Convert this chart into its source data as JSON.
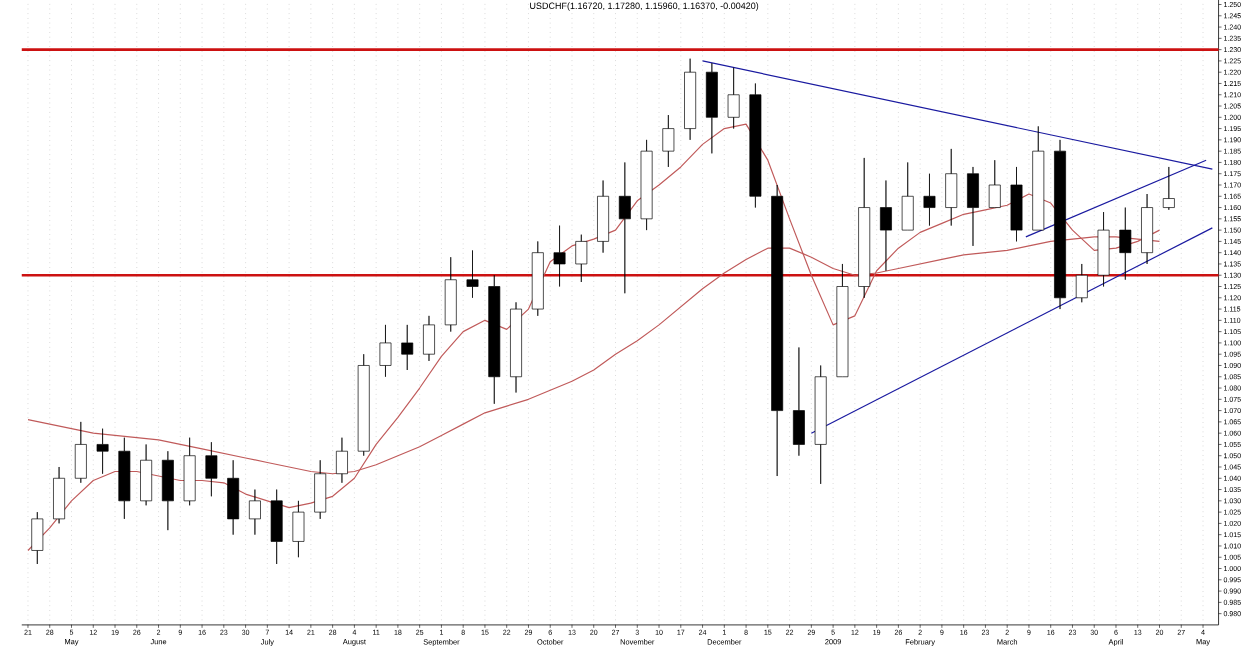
{
  "chart_data": {
    "type": "candlestick",
    "title": "USDCHF(1.16720, 1.17280, 1.15960, 1.16370, -0.00420)",
    "xlim": [
      "2008-04-19",
      "2009-05-09"
    ],
    "ylim": [
      0.975,
      1.252
    ],
    "grid": "x",
    "xticks": [
      {
        "value": "2008-04-21",
        "label": "21"
      },
      {
        "value": "2008-04-28",
        "label": "28"
      },
      {
        "value": "2008-05-05",
        "label": "5"
      },
      {
        "value": "2008-05-12",
        "label": "12"
      },
      {
        "value": "2008-05-19",
        "label": "19"
      },
      {
        "value": "2008-05-26",
        "label": "26"
      },
      {
        "value": "2008-06-02",
        "label": "2"
      },
      {
        "value": "2008-06-09",
        "label": "9"
      },
      {
        "value": "2008-06-16",
        "label": "16"
      },
      {
        "value": "2008-06-23",
        "label": "23"
      },
      {
        "value": "2008-06-30",
        "label": "30"
      },
      {
        "value": "2008-07-07",
        "label": "7"
      },
      {
        "value": "2008-07-14",
        "label": "14"
      },
      {
        "value": "2008-07-21",
        "label": "21"
      },
      {
        "value": "2008-07-28",
        "label": "28"
      },
      {
        "value": "2008-08-04",
        "label": "4"
      },
      {
        "value": "2008-08-11",
        "label": "11"
      },
      {
        "value": "2008-08-18",
        "label": "18"
      },
      {
        "value": "2008-08-25",
        "label": "25"
      },
      {
        "value": "2008-09-01",
        "label": "1"
      },
      {
        "value": "2008-09-08",
        "label": "8"
      },
      {
        "value": "2008-09-15",
        "label": "15"
      },
      {
        "value": "2008-09-22",
        "label": "22"
      },
      {
        "value": "2008-09-29",
        "label": "29"
      },
      {
        "value": "2008-10-06",
        "label": "6"
      },
      {
        "value": "2008-10-13",
        "label": "13"
      },
      {
        "value": "2008-10-20",
        "label": "20"
      },
      {
        "value": "2008-10-27",
        "label": "27"
      },
      {
        "value": "2008-11-03",
        "label": "3"
      },
      {
        "value": "2008-11-10",
        "label": "10"
      },
      {
        "value": "2008-11-17",
        "label": "17"
      },
      {
        "value": "2008-11-24",
        "label": "24"
      },
      {
        "value": "2008-12-01",
        "label": "1"
      },
      {
        "value": "2008-12-08",
        "label": "8"
      },
      {
        "value": "2008-12-15",
        "label": "15"
      },
      {
        "value": "2008-12-22",
        "label": "22"
      },
      {
        "value": "2008-12-29",
        "label": "29"
      },
      {
        "value": "2009-01-05",
        "label": "5"
      },
      {
        "value": "2009-01-12",
        "label": "12"
      },
      {
        "value": "2009-01-19",
        "label": "19"
      },
      {
        "value": "2009-01-26",
        "label": "26"
      },
      {
        "value": "2009-02-02",
        "label": "2"
      },
      {
        "value": "2009-02-09",
        "label": "9"
      },
      {
        "value": "2009-02-16",
        "label": "16"
      },
      {
        "value": "2009-02-23",
        "label": "23"
      },
      {
        "value": "2009-03-02",
        "label": "2"
      },
      {
        "value": "2009-03-09",
        "label": "9"
      },
      {
        "value": "2009-03-16",
        "label": "16"
      },
      {
        "value": "2009-03-23",
        "label": "23"
      },
      {
        "value": "2009-03-30",
        "label": "30"
      },
      {
        "value": "2009-04-06",
        "label": "6"
      },
      {
        "value": "2009-04-13",
        "label": "13"
      },
      {
        "value": "2009-04-20",
        "label": "20"
      },
      {
        "value": "2009-04-27",
        "label": "27"
      },
      {
        "value": "2009-05-04",
        "label": "4"
      }
    ],
    "yticks": [
      {
        "value": 0.98,
        "label": "0.980"
      },
      {
        "value": 0.985,
        "label": "0.985"
      },
      {
        "value": 0.99,
        "label": "0.990"
      },
      {
        "value": 0.995,
        "label": "0.995"
      },
      {
        "value": 1.0,
        "label": "1.000"
      },
      {
        "value": 1.005,
        "label": "1.005"
      },
      {
        "value": 1.01,
        "label": "1.010"
      },
      {
        "value": 1.015,
        "label": "1.015"
      },
      {
        "value": 1.02,
        "label": "1.020"
      },
      {
        "value": 1.025,
        "label": "1.025"
      },
      {
        "value": 1.03,
        "label": "1.030"
      },
      {
        "value": 1.035,
        "label": "1.035"
      },
      {
        "value": 1.04,
        "label": "1.040"
      },
      {
        "value": 1.045,
        "label": "1.045"
      },
      {
        "value": 1.05,
        "label": "1.050"
      },
      {
        "value": 1.055,
        "label": "1.055"
      },
      {
        "value": 1.06,
        "label": "1.060"
      },
      {
        "value": 1.065,
        "label": "1.065"
      },
      {
        "value": 1.07,
        "label": "1.070"
      },
      {
        "value": 1.075,
        "label": "1.075"
      },
      {
        "value": 1.08,
        "label": "1.080"
      },
      {
        "value": 1.085,
        "label": "1.085"
      },
      {
        "value": 1.09,
        "label": "1.090"
      },
      {
        "value": 1.095,
        "label": "1.095"
      },
      {
        "value": 1.1,
        "label": "1.100"
      },
      {
        "value": 1.105,
        "label": "1.105"
      },
      {
        "value": 1.11,
        "label": "1.110"
      },
      {
        "value": 1.115,
        "label": "1.115"
      },
      {
        "value": 1.12,
        "label": "1.120"
      },
      {
        "value": 1.125,
        "label": "1.125"
      },
      {
        "value": 1.13,
        "label": "1.130"
      },
      {
        "value": 1.135,
        "label": "1.135"
      },
      {
        "value": 1.14,
        "label": "1.140"
      },
      {
        "value": 1.145,
        "label": "1.145"
      },
      {
        "value": 1.15,
        "label": "1.150"
      },
      {
        "value": 1.155,
        "label": "1.155"
      },
      {
        "value": 1.16,
        "label": "1.160"
      },
      {
        "value": 1.165,
        "label": "1.165"
      },
      {
        "value": 1.17,
        "label": "1.170"
      },
      {
        "value": 1.175,
        "label": "1.175"
      },
      {
        "value": 1.18,
        "label": "1.180"
      },
      {
        "value": 1.185,
        "label": "1.185"
      },
      {
        "value": 1.19,
        "label": "1.190"
      },
      {
        "value": 1.195,
        "label": "1.195"
      },
      {
        "value": 1.2,
        "label": "1.200"
      },
      {
        "value": 1.205,
        "label": "1.205"
      },
      {
        "value": 1.21,
        "label": "1.210"
      },
      {
        "value": 1.215,
        "label": "1.215"
      },
      {
        "value": 1.22,
        "label": "1.220"
      },
      {
        "value": 1.225,
        "label": "1.225"
      },
      {
        "value": 1.23,
        "label": "1.230"
      },
      {
        "value": 1.235,
        "label": "1.235"
      },
      {
        "value": 1.24,
        "label": "1.240"
      },
      {
        "value": 1.245,
        "label": "1.245"
      },
      {
        "value": 1.25,
        "label": "1.250"
      }
    ],
    "series": [
      {
        "type": "candlestick",
        "color": "#000000",
        "x": [
          "2008-04-24",
          "2008-05-01",
          "2008-05-08",
          "2008-05-15",
          "2008-05-22",
          "2008-05-29",
          "2008-06-05",
          "2008-06-12",
          "2008-06-19",
          "2008-06-26",
          "2008-07-03",
          "2008-07-10",
          "2008-07-17",
          "2008-07-24",
          "2008-07-31",
          "2008-08-07",
          "2008-08-14",
          "2008-08-21",
          "2008-08-28",
          "2008-09-04",
          "2008-09-11",
          "2008-09-18",
          "2008-09-25",
          "2008-10-02",
          "2008-10-09",
          "2008-10-16",
          "2008-10-23",
          "2008-10-30",
          "2008-11-06",
          "2008-11-13",
          "2008-11-20",
          "2008-11-27",
          "2008-12-04",
          "2008-12-11",
          "2008-12-18",
          "2008-12-25",
          "2009-01-01",
          "2009-01-08",
          "2009-01-15",
          "2009-01-22",
          "2009-01-29",
          "2009-02-05",
          "2009-02-12",
          "2009-02-19",
          "2009-02-26",
          "2009-03-05",
          "2009-03-12",
          "2009-03-19",
          "2009-03-26",
          "2009-04-02",
          "2009-04-09",
          "2009-04-16",
          "2009-04-23"
        ],
        "ohlc": [
          [
            1.008,
            1.025,
            1.002,
            1.022
          ],
          [
            1.022,
            1.045,
            1.02,
            1.04
          ],
          [
            1.04,
            1.065,
            1.038,
            1.055
          ],
          [
            1.055,
            1.062,
            1.042,
            1.052
          ],
          [
            1.052,
            1.058,
            1.022,
            1.03
          ],
          [
            1.03,
            1.055,
            1.028,
            1.048
          ],
          [
            1.048,
            1.052,
            1.017,
            1.03
          ],
          [
            1.03,
            1.058,
            1.028,
            1.05
          ],
          [
            1.05,
            1.056,
            1.032,
            1.04
          ],
          [
            1.04,
            1.048,
            1.015,
            1.022
          ],
          [
            1.022,
            1.035,
            1.015,
            1.03
          ],
          [
            1.03,
            1.035,
            1.002,
            1.012
          ],
          [
            1.012,
            1.03,
            1.005,
            1.025
          ],
          [
            1.025,
            1.048,
            1.022,
            1.042
          ],
          [
            1.042,
            1.058,
            1.038,
            1.052
          ],
          [
            1.052,
            1.095,
            1.05,
            1.09
          ],
          [
            1.09,
            1.108,
            1.085,
            1.1
          ],
          [
            1.1,
            1.108,
            1.088,
            1.095
          ],
          [
            1.095,
            1.112,
            1.092,
            1.108
          ],
          [
            1.108,
            1.138,
            1.105,
            1.128
          ],
          [
            1.128,
            1.141,
            1.12,
            1.125
          ],
          [
            1.125,
            1.13,
            1.073,
            1.085
          ],
          [
            1.085,
            1.118,
            1.078,
            1.115
          ],
          [
            1.115,
            1.145,
            1.112,
            1.14
          ],
          [
            1.14,
            1.152,
            1.125,
            1.135
          ],
          [
            1.135,
            1.148,
            1.127,
            1.145
          ],
          [
            1.145,
            1.172,
            1.14,
            1.165
          ],
          [
            1.165,
            1.18,
            1.122,
            1.155
          ],
          [
            1.155,
            1.19,
            1.15,
            1.185
          ],
          [
            1.185,
            1.201,
            1.178,
            1.195
          ],
          [
            1.195,
            1.226,
            1.19,
            1.22
          ],
          [
            1.22,
            1.224,
            1.184,
            1.2
          ],
          [
            1.2,
            1.222,
            1.195,
            1.21
          ],
          [
            1.21,
            1.215,
            1.16,
            1.165
          ],
          [
            1.165,
            1.17,
            1.041,
            1.07
          ],
          [
            1.07,
            1.098,
            1.05,
            1.055
          ],
          [
            1.055,
            1.09,
            1.0375,
            1.085
          ],
          [
            1.085,
            1.135,
            1.085,
            1.125
          ],
          [
            1.125,
            1.182,
            1.12,
            1.16
          ],
          [
            1.16,
            1.172,
            1.132,
            1.15
          ],
          [
            1.15,
            1.18,
            1.15,
            1.165
          ],
          [
            1.165,
            1.175,
            1.152,
            1.16
          ],
          [
            1.16,
            1.186,
            1.152,
            1.175
          ],
          [
            1.175,
            1.178,
            1.143,
            1.16
          ],
          [
            1.16,
            1.181,
            1.16,
            1.17
          ],
          [
            1.17,
            1.178,
            1.145,
            1.15
          ],
          [
            1.15,
            1.196,
            1.15,
            1.185
          ],
          [
            1.185,
            1.19,
            1.115,
            1.12
          ],
          [
            1.12,
            1.135,
            1.118,
            1.13
          ],
          [
            1.13,
            1.158,
            1.125,
            1.15
          ],
          [
            1.15,
            1.16,
            1.128,
            1.14
          ],
          [
            1.14,
            1.166,
            1.135,
            1.16
          ],
          [
            1.16,
            1.178,
            1.159,
            1.164
          ]
        ]
      },
      {
        "type": "line",
        "color": "#c05a5a",
        "x": [
          "2008-04-21",
          "2008-04-28",
          "2008-05-05",
          "2008-05-12",
          "2008-05-19",
          "2008-05-26",
          "2008-06-02",
          "2008-06-09",
          "2008-06-16",
          "2008-06-23",
          "2008-06-30",
          "2008-07-07",
          "2008-07-14",
          "2008-07-21",
          "2008-07-28",
          "2008-08-04",
          "2008-08-11",
          "2008-08-18",
          "2008-08-25",
          "2008-09-01",
          "2008-09-08",
          "2008-09-15",
          "2008-09-22",
          "2008-09-29",
          "2008-10-06",
          "2008-10-13",
          "2008-10-20",
          "2008-10-27",
          "2008-11-03",
          "2008-11-10",
          "2008-11-17",
          "2008-11-24",
          "2008-12-01",
          "2008-12-08",
          "2008-12-15",
          "2008-12-22",
          "2008-12-29",
          "2009-01-05",
          "2009-01-12",
          "2009-01-19",
          "2009-01-26",
          "2009-02-02",
          "2009-02-09",
          "2009-02-16",
          "2009-02-23",
          "2009-03-02",
          "2009-03-09",
          "2009-03-16",
          "2009-03-23",
          "2009-03-30",
          "2009-04-06",
          "2009-04-13",
          "2009-04-20"
        ],
        "values": [
          1.008,
          1.018,
          1.03,
          1.039,
          1.043,
          1.043,
          1.041,
          1.039,
          1.039,
          1.038,
          1.033,
          1.03,
          1.027,
          1.029,
          1.032,
          1.04,
          1.055,
          1.067,
          1.08,
          1.094,
          1.105,
          1.11,
          1.106,
          1.115,
          1.136,
          1.143,
          1.146,
          1.15,
          1.163,
          1.17,
          1.178,
          1.188,
          1.195,
          1.197,
          1.181,
          1.155,
          1.13,
          1.108,
          1.112,
          1.132,
          1.142,
          1.149,
          1.153,
          1.157,
          1.159,
          1.161,
          1.166,
          1.162,
          1.15,
          1.141,
          1.142,
          1.145,
          1.15
        ]
      },
      {
        "type": "line",
        "color": "#c05a5a",
        "x": [
          "2008-04-21",
          "2008-04-28",
          "2008-05-05",
          "2008-05-12",
          "2008-05-19",
          "2008-05-26",
          "2008-06-02",
          "2008-06-09",
          "2008-06-16",
          "2008-06-23",
          "2008-06-30",
          "2008-07-07",
          "2008-07-14",
          "2008-07-21",
          "2008-07-28",
          "2008-08-04",
          "2008-08-11",
          "2008-08-18",
          "2008-08-25",
          "2008-09-01",
          "2008-09-08",
          "2008-09-15",
          "2008-09-22",
          "2008-09-29",
          "2008-10-06",
          "2008-10-13",
          "2008-10-20",
          "2008-10-27",
          "2008-11-03",
          "2008-11-10",
          "2008-11-17",
          "2008-11-24",
          "2008-12-01",
          "2008-12-08",
          "2008-12-15",
          "2008-12-22",
          "2008-12-29",
          "2009-01-05",
          "2009-01-12",
          "2009-01-19",
          "2009-01-26",
          "2009-02-02",
          "2009-02-09",
          "2009-02-16",
          "2009-02-23",
          "2009-03-02",
          "2009-03-09",
          "2009-03-16",
          "2009-03-23",
          "2009-03-30",
          "2009-04-06",
          "2009-04-13",
          "2009-04-20"
        ],
        "values": [
          1.066,
          1.064,
          1.062,
          1.06,
          1.059,
          1.058,
          1.057,
          1.055,
          1.053,
          1.051,
          1.049,
          1.047,
          1.045,
          1.043,
          1.042,
          1.043,
          1.046,
          1.05,
          1.054,
          1.059,
          1.064,
          1.069,
          1.072,
          1.075,
          1.079,
          1.083,
          1.088,
          1.095,
          1.101,
          1.108,
          1.116,
          1.124,
          1.131,
          1.137,
          1.142,
          1.142,
          1.138,
          1.133,
          1.13,
          1.131,
          1.133,
          1.135,
          1.137,
          1.139,
          1.14,
          1.141,
          1.143,
          1.145,
          1.146,
          1.147,
          1.147,
          1.146,
          1.145
        ]
      },
      {
        "type": "line",
        "color": "#1a1aa0",
        "x": [
          "2008-11-24",
          "2009-05-07"
        ],
        "values": [
          1.225,
          1.177
        ]
      },
      {
        "type": "line",
        "color": "#1a1aa0",
        "x": [
          "2008-12-29",
          "2009-05-07"
        ],
        "values": [
          1.06,
          1.151
        ]
      },
      {
        "type": "line",
        "color": "#1a1aa0",
        "x": [
          "2009-03-08",
          "2009-05-05"
        ],
        "values": [
          1.147,
          1.181
        ]
      }
    ],
    "ref_lines": [
      {
        "axis": "y",
        "value": 1.23,
        "color": "#cc1111"
      },
      {
        "axis": "y",
        "value": 1.13,
        "color": "#cc1111"
      }
    ],
    "x2lim": [
      "2008-04-19",
      "2009-05-09"
    ],
    "x2ticks": [
      {
        "value": "2008-05-05",
        "label": "May"
      },
      {
        "value": "2008-06-02",
        "label": "June"
      },
      {
        "value": "2008-07-07",
        "label": "July"
      },
      {
        "value": "2008-08-04",
        "label": "August"
      },
      {
        "value": "2008-09-01",
        "label": "September"
      },
      {
        "value": "2008-10-06",
        "label": "October"
      },
      {
        "value": "2008-11-03",
        "label": "November"
      },
      {
        "value": "2008-12-01",
        "label": "December"
      },
      {
        "value": "2009-01-05",
        "label": "2009"
      },
      {
        "value": "2009-02-02",
        "label": "February"
      },
      {
        "value": "2009-03-02",
        "label": "March"
      },
      {
        "value": "2009-04-06",
        "label": "April"
      },
      {
        "value": "2009-05-04",
        "label": "May"
      }
    ]
  }
}
